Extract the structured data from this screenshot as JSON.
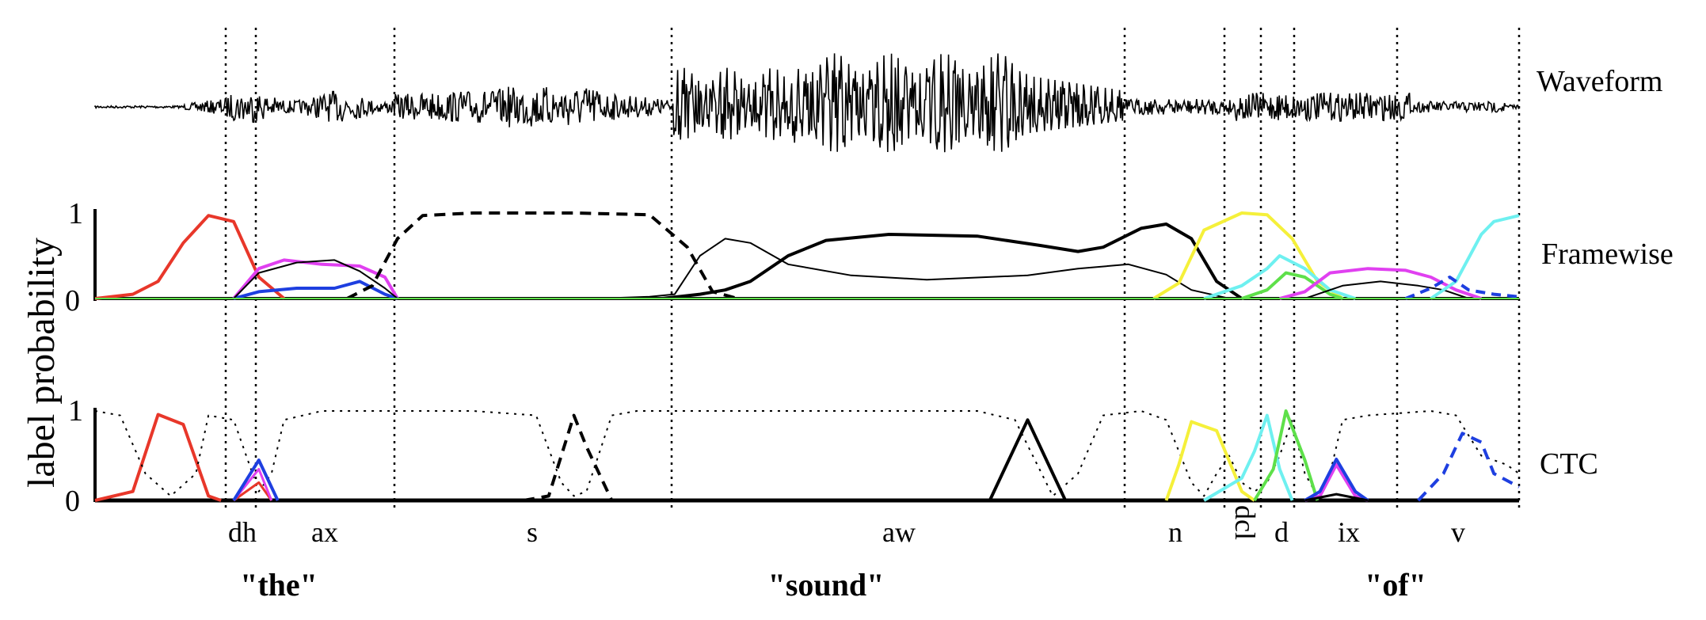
{
  "row_labels": {
    "waveform": "Waveform",
    "framewise": "Framewise",
    "ctc": "CTC"
  },
  "y_axis_label": "label probability",
  "tick_labels": {
    "one": "1",
    "zero": "0"
  },
  "phones": [
    "dh",
    "ax",
    "s",
    "aw",
    "n",
    "dcl",
    "d",
    "ix",
    "v"
  ],
  "words": [
    "\"the\"",
    "\"sound\"",
    "\"of\""
  ],
  "colors": {
    "red": "#e8372a",
    "magenta": "#e040f0",
    "blue": "#1e3fe0",
    "black": "#000000",
    "yellow": "#f5f03a",
    "cyan": "#6ef0f0",
    "green": "#5ee04a",
    "dashblue": "#1e3fe0"
  },
  "time_boundaries_frames": [
    0,
    10.8,
    13.1,
    25.0,
    47.2,
    83.0,
    90.9,
    93.8,
    96.5,
    103.6,
    113
  ]
}
